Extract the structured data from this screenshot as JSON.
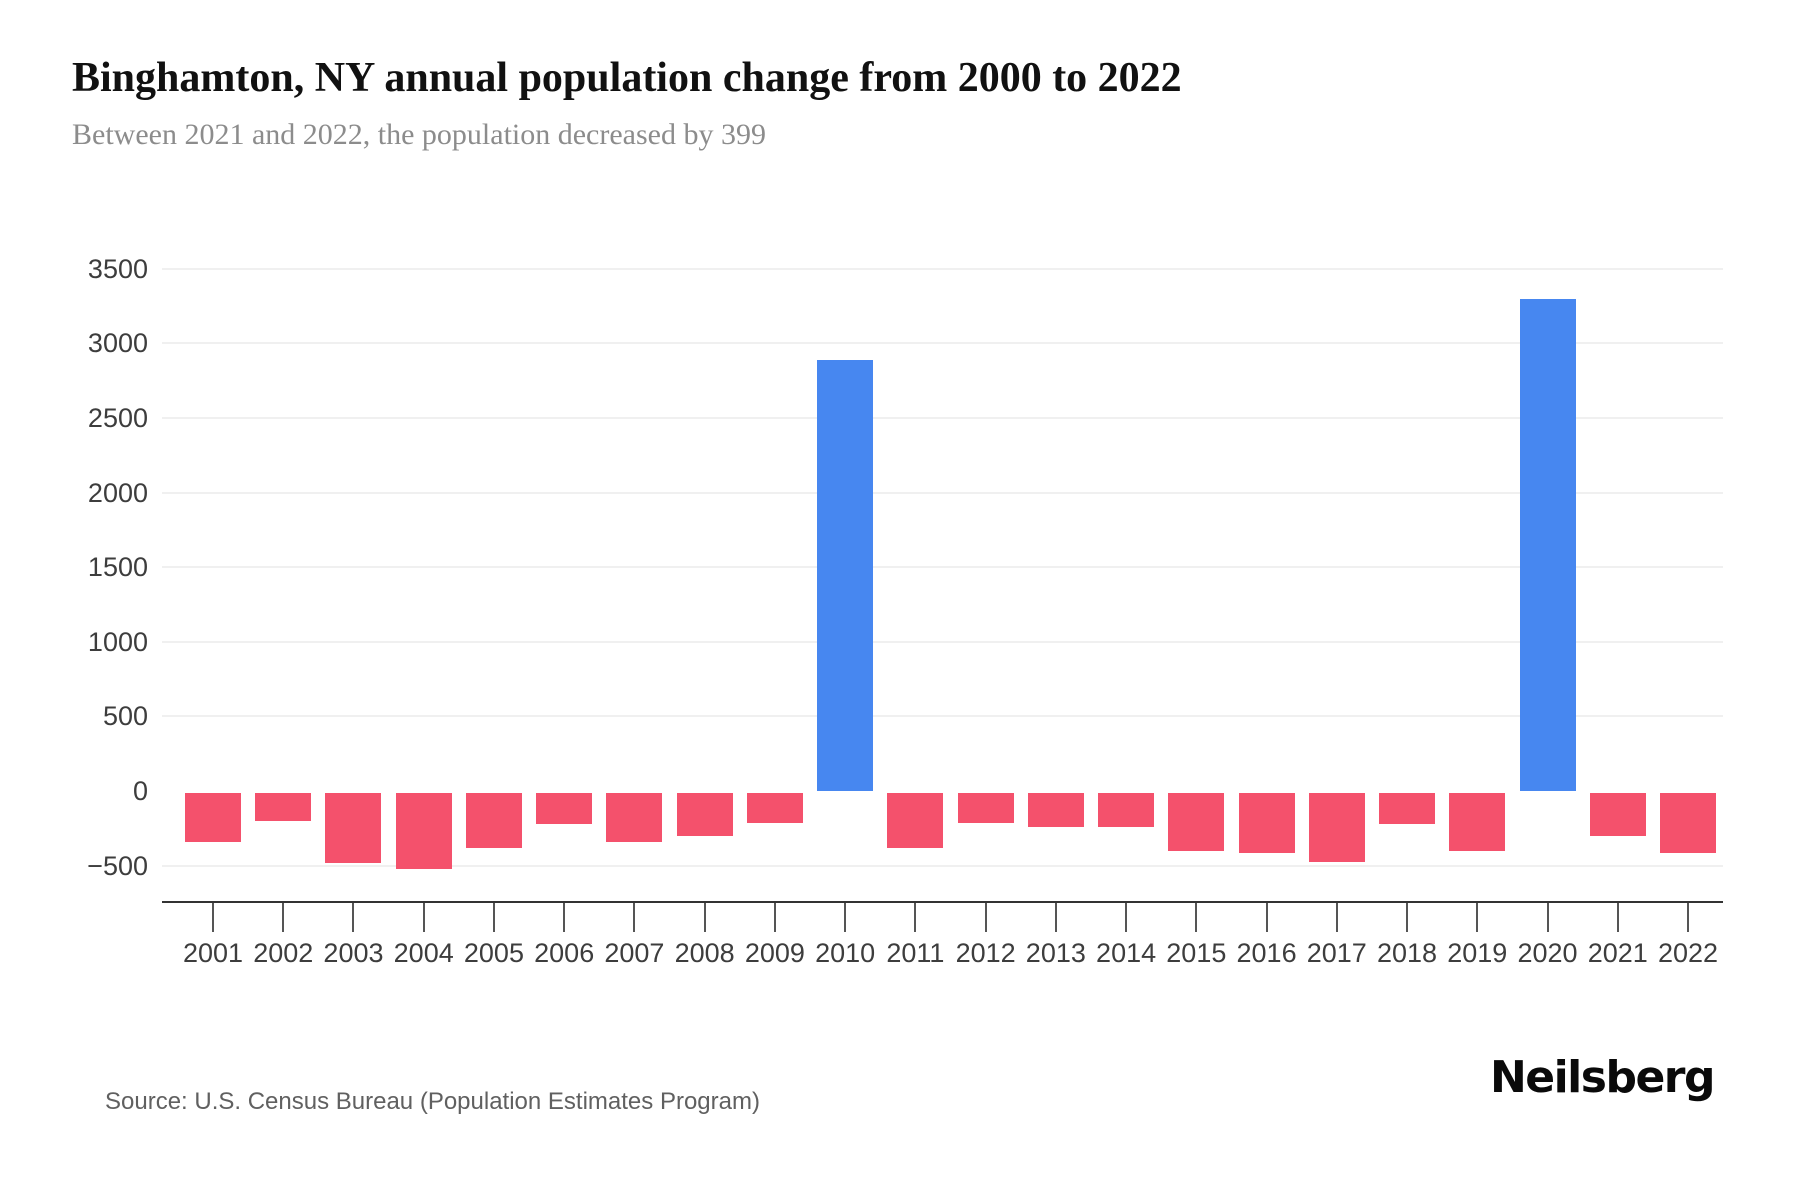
{
  "chart_data": {
    "type": "bar",
    "title": "Binghamton, NY annual population change from 2000 to 2022",
    "subtitle": "Between 2021 and 2022, the population decreased by 399",
    "categories": [
      "2001",
      "2002",
      "2003",
      "2004",
      "2005",
      "2006",
      "2007",
      "2008",
      "2009",
      "2010",
      "2011",
      "2012",
      "2013",
      "2014",
      "2015",
      "2016",
      "2017",
      "2018",
      "2019",
      "2020",
      "2021",
      "2022"
    ],
    "values": [
      -330,
      -190,
      -470,
      -510,
      -370,
      -210,
      -330,
      -290,
      -200,
      2890,
      -370,
      -200,
      -230,
      -230,
      -390,
      -400,
      -460,
      -210,
      -390,
      3300,
      -290,
      -399
    ],
    "xlabel": "",
    "ylabel": "",
    "ylim": [
      -500,
      3500
    ],
    "yticks": [
      3500,
      3000,
      2500,
      2000,
      1500,
      1000,
      500,
      0,
      -500
    ],
    "grid": true,
    "legend": "none",
    "positive_color": "#4787f0",
    "negative_color": "#f4516c"
  },
  "footer": {
    "source": "Source: U.S. Census Bureau (Population Estimates Program)",
    "brand": "Neilsberg"
  }
}
